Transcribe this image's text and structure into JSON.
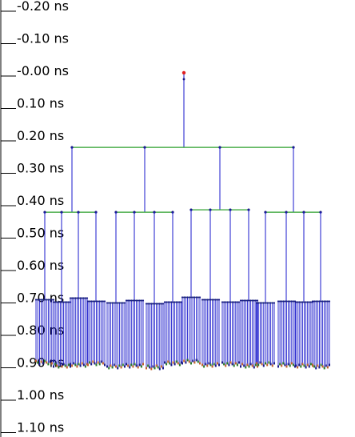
{
  "time_axis": {
    "labels": [
      "-0.20 ns",
      "-0.10 ns",
      "-0.00 ns",
      "0.10 ns",
      "0.20 ns",
      "0.30 ns",
      "0.40 ns",
      "0.50 ns",
      "0.60 ns",
      "0.70 ns",
      "0.80 ns",
      "0.90 ns",
      "1.00 ns",
      "1.10 ns"
    ],
    "values_ns": [
      -0.2,
      -0.1,
      0.0,
      0.1,
      0.2,
      0.3,
      0.4,
      0.5,
      0.6,
      0.7,
      0.8,
      0.9,
      1.0,
      1.1
    ]
  },
  "clock_tree": {
    "root_time_ns": -0.01,
    "level1_time_ns": 0.22,
    "level2_time_ns": 0.42,
    "leaf_bar_time_ns": 0.695,
    "sink_time_ns": 0.885,
    "level2_groups": 4,
    "level3_per_group": 4,
    "sinks_per_branch": 11
  },
  "colors": {
    "axis": "#000000",
    "wire_vertical": "#1a1acc",
    "wire_horizontal": "#2ea02e",
    "node": "#1a1a88",
    "root_marker": "#e02020",
    "sink_marker": "#c0602a"
  }
}
